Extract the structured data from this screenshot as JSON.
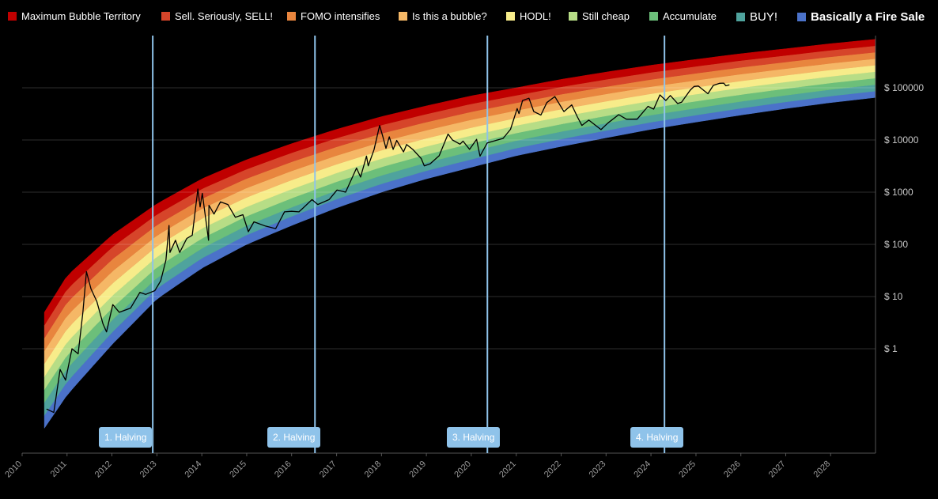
{
  "legend": [
    {
      "label": "Maximum Bubble Territory",
      "color": "#c00000"
    },
    {
      "label": "Sell. Seriously, SELL!",
      "color": "#d6452a"
    },
    {
      "label": "FOMO intensifies",
      "color": "#e8853e"
    },
    {
      "label": "Is this a bubble?",
      "color": "#f5b766"
    },
    {
      "label": "HODL!",
      "color": "#f7ec8a"
    },
    {
      "label": "Still cheap",
      "color": "#b7dd86"
    },
    {
      "label": "Accumulate",
      "color": "#6cbf7a"
    },
    {
      "label": "BUY!",
      "color": "#4fa39d"
    },
    {
      "label": "Basically a Fire Sale",
      "color": "#4b72c9"
    }
  ],
  "halvings": [
    {
      "label": "1. Halving",
      "date": "2012-11-28"
    },
    {
      "label": "2. Halving",
      "date": "2016-07-09"
    },
    {
      "label": "3. Halving",
      "date": "2020-05-11"
    },
    {
      "label": "4. Halving",
      "date": "2024-04-20"
    }
  ],
  "chart_data": {
    "type": "area",
    "title": "",
    "xlabel": "",
    "ylabel": "",
    "y_scale": "log",
    "grid": true,
    "legend_position": "top",
    "x_range": [
      "2010-01-01",
      "2028-12-31"
    ],
    "y_range": [
      0.01,
      1000000
    ],
    "x_ticks": [
      "2010",
      "2011",
      "2012",
      "2013",
      "2014",
      "2015",
      "2016",
      "2017",
      "2018",
      "2019",
      "2020",
      "2021",
      "2022",
      "2023",
      "2024",
      "2025",
      "2026",
      "2027",
      "2028"
    ],
    "y_ticks": [
      {
        "value": 1,
        "label": "$ 1"
      },
      {
        "value": 10,
        "label": "$ 10"
      },
      {
        "value": 100,
        "label": "$ 100"
      },
      {
        "value": 1000,
        "label": "$ 1000"
      },
      {
        "value": 10000,
        "label": "$ 10000"
      },
      {
        "value": 100000,
        "label": "$ 100000"
      }
    ],
    "rainbow_bands": {
      "colors": [
        "#4b72c9",
        "#4fa39d",
        "#6cbf7a",
        "#b7dd86",
        "#f7ec8a",
        "#f5b766",
        "#e8853e",
        "#d6452a",
        "#c00000"
      ],
      "lower_curve": [
        {
          "x": "2010-07-01",
          "y": 0.03
        },
        {
          "x": "2011-01-01",
          "y": 0.13
        },
        {
          "x": "2012-01-01",
          "y": 1.2
        },
        {
          "x": "2013-01-01",
          "y": 9
        },
        {
          "x": "2014-01-01",
          "y": 35
        },
        {
          "x": "2015-01-01",
          "y": 100
        },
        {
          "x": "2016-01-01",
          "y": 230
        },
        {
          "x": "2017-01-01",
          "y": 500
        },
        {
          "x": "2018-01-01",
          "y": 1000
        },
        {
          "x": "2019-01-01",
          "y": 1800
        },
        {
          "x": "2020-01-01",
          "y": 3000
        },
        {
          "x": "2021-01-01",
          "y": 5000
        },
        {
          "x": "2022-01-01",
          "y": 7500
        },
        {
          "x": "2023-01-01",
          "y": 11000
        },
        {
          "x": "2024-01-01",
          "y": 16000
        },
        {
          "x": "2025-01-01",
          "y": 22000
        },
        {
          "x": "2026-01-01",
          "y": 30000
        },
        {
          "x": "2027-01-01",
          "y": 40000
        },
        {
          "x": "2028-01-01",
          "y": 52000
        },
        {
          "x": "2028-12-31",
          "y": 65000
        }
      ],
      "upper_curve": [
        {
          "x": "2010-07-01",
          "y": 5
        },
        {
          "x": "2011-01-01",
          "y": 25
        },
        {
          "x": "2012-01-01",
          "y": 150
        },
        {
          "x": "2013-01-01",
          "y": 600
        },
        {
          "x": "2014-01-01",
          "y": 1800
        },
        {
          "x": "2015-01-01",
          "y": 4200
        },
        {
          "x": "2016-01-01",
          "y": 8500
        },
        {
          "x": "2017-01-01",
          "y": 16000
        },
        {
          "x": "2018-01-01",
          "y": 28000
        },
        {
          "x": "2019-01-01",
          "y": 45000
        },
        {
          "x": "2020-01-01",
          "y": 70000
        },
        {
          "x": "2021-01-01",
          "y": 100000
        },
        {
          "x": "2022-01-01",
          "y": 145000
        },
        {
          "x": "2023-01-01",
          "y": 200000
        },
        {
          "x": "2024-01-01",
          "y": 270000
        },
        {
          "x": "2025-01-01",
          "y": 350000
        },
        {
          "x": "2026-01-01",
          "y": 450000
        },
        {
          "x": "2027-01-01",
          "y": 560000
        },
        {
          "x": "2028-01-01",
          "y": 700000
        },
        {
          "x": "2028-12-31",
          "y": 850000
        }
      ]
    },
    "series": [
      {
        "type": "line",
        "color": "#000000",
        "points": [
          {
            "x": "2010-07-18",
            "y": 0.07
          },
          {
            "x": "2010-09-15",
            "y": 0.06
          },
          {
            "x": "2010-11-06",
            "y": 0.4
          },
          {
            "x": "2010-12-20",
            "y": 0.25
          },
          {
            "x": "2011-02-10",
            "y": 1.0
          },
          {
            "x": "2011-04-01",
            "y": 0.8
          },
          {
            "x": "2011-05-10",
            "y": 5
          },
          {
            "x": "2011-06-08",
            "y": 30
          },
          {
            "x": "2011-07-15",
            "y": 14
          },
          {
            "x": "2011-09-01",
            "y": 8
          },
          {
            "x": "2011-10-20",
            "y": 3
          },
          {
            "x": "2011-11-18",
            "y": 2.1
          },
          {
            "x": "2012-01-08",
            "y": 7
          },
          {
            "x": "2012-03-01",
            "y": 5
          },
          {
            "x": "2012-06-01",
            "y": 6
          },
          {
            "x": "2012-08-15",
            "y": 12
          },
          {
            "x": "2012-10-01",
            "y": 11
          },
          {
            "x": "2012-12-15",
            "y": 13
          },
          {
            "x": "2013-02-01",
            "y": 20
          },
          {
            "x": "2013-03-15",
            "y": 50
          },
          {
            "x": "2013-04-09",
            "y": 230
          },
          {
            "x": "2013-04-17",
            "y": 70
          },
          {
            "x": "2013-06-01",
            "y": 120
          },
          {
            "x": "2013-07-05",
            "y": 70
          },
          {
            "x": "2013-09-01",
            "y": 130
          },
          {
            "x": "2013-10-15",
            "y": 150
          },
          {
            "x": "2013-11-30",
            "y": 1150
          },
          {
            "x": "2013-12-18",
            "y": 520
          },
          {
            "x": "2014-01-05",
            "y": 950
          },
          {
            "x": "2014-02-25",
            "y": 120
          },
          {
            "x": "2014-02-28",
            "y": 560
          },
          {
            "x": "2014-04-10",
            "y": 380
          },
          {
            "x": "2014-06-01",
            "y": 650
          },
          {
            "x": "2014-08-01",
            "y": 580
          },
          {
            "x": "2014-10-01",
            "y": 330
          },
          {
            "x": "2014-12-01",
            "y": 370
          },
          {
            "x": "2015-01-14",
            "y": 175
          },
          {
            "x": "2015-03-01",
            "y": 270
          },
          {
            "x": "2015-06-01",
            "y": 225
          },
          {
            "x": "2015-08-25",
            "y": 200
          },
          {
            "x": "2015-11-04",
            "y": 420
          },
          {
            "x": "2016-01-01",
            "y": 430
          },
          {
            "x": "2016-03-01",
            "y": 420
          },
          {
            "x": "2016-06-15",
            "y": 720
          },
          {
            "x": "2016-08-01",
            "y": 580
          },
          {
            "x": "2016-11-01",
            "y": 720
          },
          {
            "x": "2017-01-04",
            "y": 1100
          },
          {
            "x": "2017-03-15",
            "y": 1000
          },
          {
            "x": "2017-06-12",
            "y": 2900
          },
          {
            "x": "2017-07-15",
            "y": 1950
          },
          {
            "x": "2017-09-01",
            "y": 4900
          },
          {
            "x": "2017-09-15",
            "y": 3200
          },
          {
            "x": "2017-11-01",
            "y": 6500
          },
          {
            "x": "2017-12-17",
            "y": 19000
          },
          {
            "x": "2018-01-15",
            "y": 11000
          },
          {
            "x": "2018-02-06",
            "y": 6900
          },
          {
            "x": "2018-03-05",
            "y": 11500
          },
          {
            "x": "2018-04-06",
            "y": 6600
          },
          {
            "x": "2018-05-05",
            "y": 9800
          },
          {
            "x": "2018-06-29",
            "y": 5900
          },
          {
            "x": "2018-07-24",
            "y": 8200
          },
          {
            "x": "2018-09-15",
            "y": 6500
          },
          {
            "x": "2018-11-20",
            "y": 4400
          },
          {
            "x": "2018-12-15",
            "y": 3200
          },
          {
            "x": "2019-02-01",
            "y": 3500
          },
          {
            "x": "2019-04-15",
            "y": 5000
          },
          {
            "x": "2019-06-26",
            "y": 13000
          },
          {
            "x": "2019-08-01",
            "y": 10000
          },
          {
            "x": "2019-10-01",
            "y": 8300
          },
          {
            "x": "2019-10-26",
            "y": 9500
          },
          {
            "x": "2019-12-18",
            "y": 6600
          },
          {
            "x": "2020-02-13",
            "y": 10300
          },
          {
            "x": "2020-03-12",
            "y": 4900
          },
          {
            "x": "2020-05-10",
            "y": 8800
          },
          {
            "x": "2020-07-26",
            "y": 9900
          },
          {
            "x": "2020-09-15",
            "y": 10700
          },
          {
            "x": "2020-11-15",
            "y": 16000
          },
          {
            "x": "2021-01-08",
            "y": 40000
          },
          {
            "x": "2021-01-23",
            "y": 32000
          },
          {
            "x": "2021-02-21",
            "y": 57000
          },
          {
            "x": "2021-04-14",
            "y": 63000
          },
          {
            "x": "2021-05-23",
            "y": 35000
          },
          {
            "x": "2021-07-20",
            "y": 30000
          },
          {
            "x": "2021-09-06",
            "y": 52000
          },
          {
            "x": "2021-11-10",
            "y": 68000
          },
          {
            "x": "2022-01-23",
            "y": 35000
          },
          {
            "x": "2022-03-28",
            "y": 47000
          },
          {
            "x": "2022-05-12",
            "y": 28000
          },
          {
            "x": "2022-06-18",
            "y": 19000
          },
          {
            "x": "2022-08-14",
            "y": 24000
          },
          {
            "x": "2022-11-21",
            "y": 15800
          },
          {
            "x": "2023-01-15",
            "y": 21000
          },
          {
            "x": "2023-04-14",
            "y": 30500
          },
          {
            "x": "2023-06-15",
            "y": 25000
          },
          {
            "x": "2023-09-11",
            "y": 25000
          },
          {
            "x": "2023-12-08",
            "y": 44000
          },
          {
            "x": "2024-01-23",
            "y": 39000
          },
          {
            "x": "2024-03-14",
            "y": 73000
          },
          {
            "x": "2024-05-01",
            "y": 57000
          },
          {
            "x": "2024-06-07",
            "y": 71000
          },
          {
            "x": "2024-08-05",
            "y": 50000
          },
          {
            "x": "2024-09-06",
            "y": 53000
          },
          {
            "x": "2024-11-15",
            "y": 90000
          },
          {
            "x": "2024-12-17",
            "y": 106000
          },
          {
            "x": "2025-01-20",
            "y": 108000
          },
          {
            "x": "2025-04-08",
            "y": 77000
          },
          {
            "x": "2025-05-22",
            "y": 111000
          },
          {
            "x": "2025-07-14",
            "y": 122000
          },
          {
            "x": "2025-08-14",
            "y": 123000
          },
          {
            "x": "2025-09-01",
            "y": 109000
          },
          {
            "x": "2025-09-30",
            "y": 114000
          }
        ]
      }
    ]
  }
}
